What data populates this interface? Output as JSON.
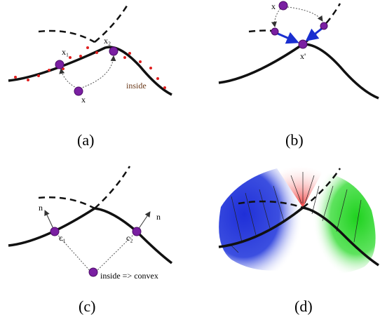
{
  "panels": [
    {
      "caption": "(a)",
      "labels": [
        "x₁",
        "x₂",
        "x",
        "inside"
      ]
    },
    {
      "caption": "(b)",
      "labels": [
        "x",
        "x'"
      ]
    },
    {
      "caption": "(c)",
      "labels": [
        "n",
        "c₁",
        "c₂",
        "n",
        "inside => convex"
      ]
    },
    {
      "caption": "(d)",
      "labels": []
    }
  ]
}
